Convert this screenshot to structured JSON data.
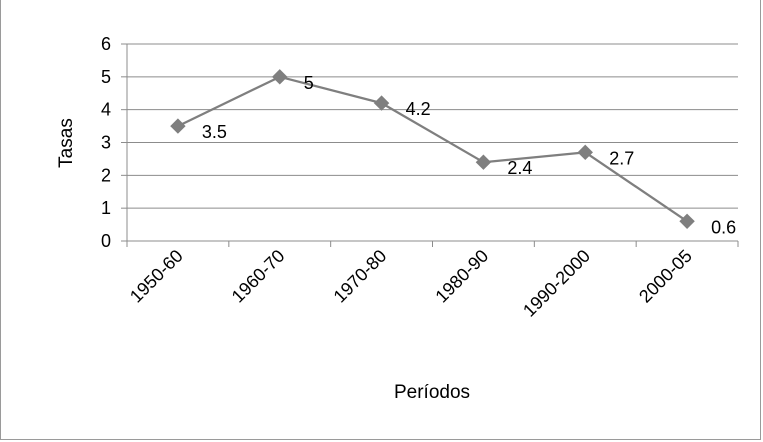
{
  "chart_data": {
    "type": "line",
    "title": "",
    "xlabel": "Períodos",
    "ylabel": "Tasas",
    "categories": [
      "1950-60",
      "1960-70",
      "1970-80",
      "1980-90",
      "1990-2000",
      "2000-05"
    ],
    "series": [
      {
        "values": [
          3.5,
          5,
          4.2,
          2.4,
          2.7,
          0.6
        ],
        "data_labels": [
          "3.5",
          "5",
          "4.2",
          "2.4",
          "2.7",
          "0.6"
        ],
        "color": "#7f7f7f",
        "marker": "diamond"
      }
    ],
    "ylim": [
      0,
      6
    ],
    "yticks": [
      "0",
      "1",
      "2",
      "3",
      "4",
      "5",
      "6"
    ],
    "grid": "horizontal",
    "legend": "none"
  }
}
